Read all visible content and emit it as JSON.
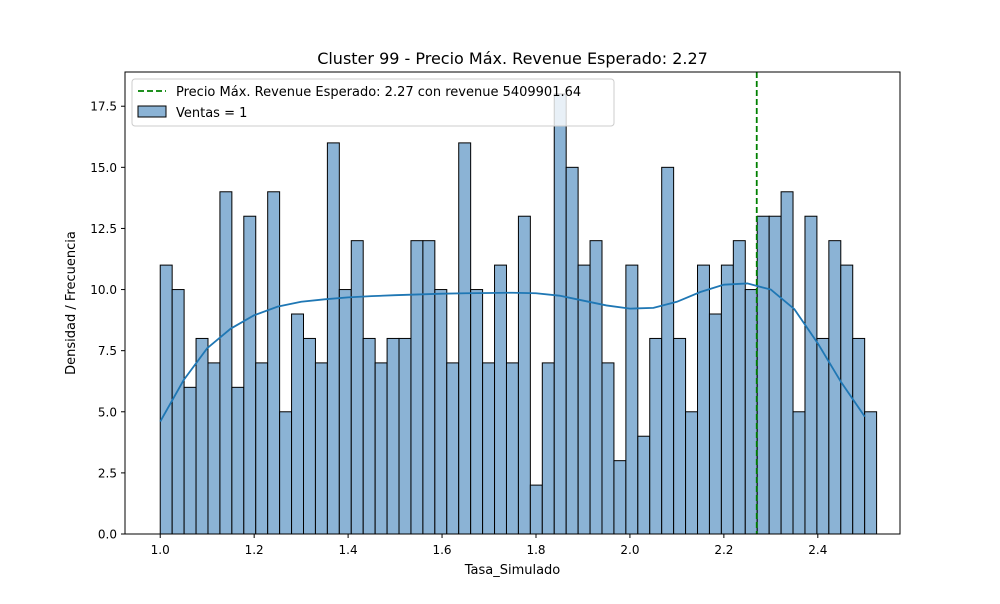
{
  "chart_data": {
    "type": "histogram",
    "title": "Cluster 99 - Precio Máx. Revenue Esperado: 2.27",
    "xlabel": "Tasa_Simulado",
    "ylabel": "Densidad / Frecuencia",
    "xlim": [
      0.925,
      2.575
    ],
    "ylim": [
      0,
      18.9
    ],
    "x_ticks": [
      1.0,
      1.2,
      1.4,
      1.6,
      1.8,
      2.0,
      2.2,
      2.4
    ],
    "x_tick_labels": [
      "1.0",
      "1.2",
      "1.4",
      "1.6",
      "1.8",
      "2.0",
      "2.2",
      "2.4"
    ],
    "y_ticks": [
      0,
      2.5,
      5,
      7.5,
      10,
      12.5,
      15,
      17.5
    ],
    "y_tick_labels": [
      "0.0",
      "2.5",
      "5.0",
      "7.5",
      "10.0",
      "12.5",
      "15.0",
      "17.5"
    ],
    "bins": {
      "start": 1.0,
      "width": 0.02542,
      "counts": [
        11,
        10,
        6,
        8,
        7,
        14,
        6,
        13,
        7,
        14,
        5,
        9,
        8,
        7,
        16,
        10,
        12,
        8,
        7,
        8,
        8,
        12,
        12,
        10,
        7,
        16,
        10,
        7,
        11,
        7,
        13,
        2,
        7,
        18,
        15,
        11,
        12,
        7,
        3,
        11,
        4,
        8,
        15,
        8,
        5,
        11,
        9,
        11,
        12,
        10,
        13,
        13,
        14,
        5,
        13,
        8,
        12,
        11,
        8,
        5
      ]
    },
    "kde": {
      "x": [
        1.0,
        1.05,
        1.1,
        1.15,
        1.2,
        1.25,
        1.3,
        1.35,
        1.4,
        1.45,
        1.5,
        1.55,
        1.6,
        1.65,
        1.7,
        1.75,
        1.8,
        1.85,
        1.9,
        1.95,
        2.0,
        2.05,
        2.1,
        2.15,
        2.2,
        2.25,
        2.3,
        2.35,
        2.4,
        2.45,
        2.5
      ],
      "y": [
        4.6,
        6.3,
        7.6,
        8.4,
        8.95,
        9.3,
        9.5,
        9.6,
        9.68,
        9.73,
        9.77,
        9.8,
        9.83,
        9.85,
        9.86,
        9.87,
        9.85,
        9.75,
        9.55,
        9.35,
        9.22,
        9.25,
        9.5,
        9.9,
        10.2,
        10.25,
        10.0,
        9.2,
        7.8,
        6.2,
        4.8
      ]
    },
    "vline": {
      "x": 2.27,
      "label": "Precio Máx. Revenue Esperado: 2.27 con revenue 5409901.64",
      "color": "#008000"
    },
    "colors": {
      "bar_fill": "#8bb3d5",
      "bar_edge": "#000000",
      "kde_line": "#1f77b4"
    },
    "legend": {
      "placement": "upper-left",
      "entries": [
        {
          "label": "Precio Máx. Revenue Esperado: 2.27 con revenue 5409901.64",
          "kind": "dashed-line"
        },
        {
          "label": "Ventas = 1",
          "kind": "patch"
        }
      ]
    }
  }
}
